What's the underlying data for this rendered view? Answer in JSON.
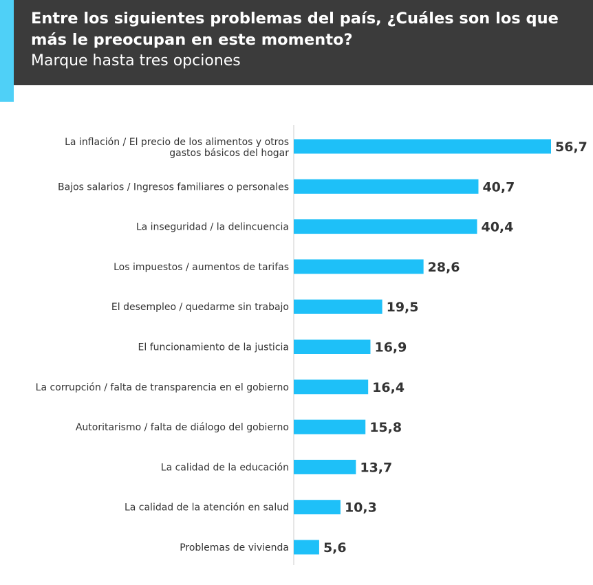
{
  "header": {
    "title": "Entre los siguientes problemas del país, ¿Cuáles son los que más le preocupan en este momento?",
    "subtitle": "Marque hasta tres opciones"
  },
  "colors": {
    "header_bg": "#3b3b3b",
    "accent": "#4fd0f7",
    "bar": "#1ec0f8",
    "text": "#333333"
  },
  "chart_data": {
    "type": "bar",
    "orientation": "horizontal",
    "categories": [
      [
        "La inflación / El precio de los alimentos y otros",
        "gastos básicos del hogar"
      ],
      [
        "Bajos salarios / Ingresos familiares o personales"
      ],
      [
        "La inseguridad / la delincuencia"
      ],
      [
        "Los impuestos / aumentos de tarifas"
      ],
      [
        "El desempleo / quedarme sin trabajo"
      ],
      [
        "El funcionamiento de la justicia"
      ],
      [
        "La corrupción / falta de transparencia en el gobierno"
      ],
      [
        "Autoritarismo / falta de diálogo del gobierno"
      ],
      [
        "La calidad de la educación"
      ],
      [
        "La calidad de la atención en salud"
      ],
      [
        "Problemas de vivienda"
      ]
    ],
    "values": [
      56.7,
      40.7,
      40.4,
      28.6,
      19.5,
      16.9,
      16.4,
      15.8,
      13.7,
      10.3,
      5.6
    ],
    "value_labels": [
      "56,7",
      "40,7",
      "40,4",
      "28,6",
      "19,5",
      "16,9",
      "16,4",
      "15,8",
      "13,7",
      "10,3",
      "5,6"
    ],
    "grid": false,
    "legend": "none"
  }
}
